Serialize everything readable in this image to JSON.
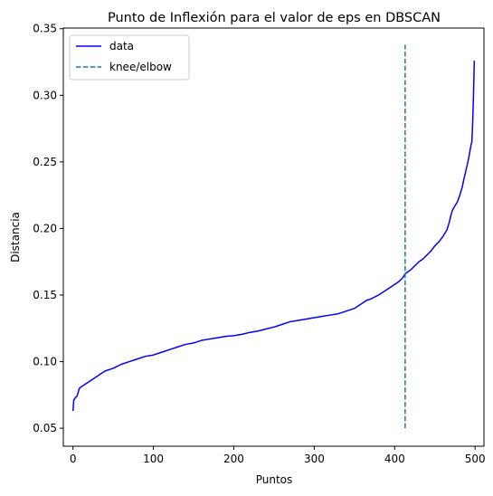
{
  "chart_data": {
    "type": "line",
    "title": "Punto de Inflexión para el valor de eps en DBSCAN",
    "xlabel": "Puntos",
    "ylabel": "Distancia",
    "xlim": [
      -12,
      511
    ],
    "ylim": [
      0.0365,
      0.3505
    ],
    "xticks": [
      0,
      100,
      200,
      300,
      400,
      500
    ],
    "xtick_labels": [
      "0",
      "100",
      "200",
      "300",
      "400",
      "500"
    ],
    "yticks": [
      0.05,
      0.1,
      0.15,
      0.2,
      0.25,
      0.3,
      0.35
    ],
    "ytick_labels": [
      "0.05",
      "0.10",
      "0.15",
      "0.20",
      "0.25",
      "0.30",
      "0.35"
    ],
    "grid": false,
    "legend_position": "top-left",
    "series": [
      {
        "name": "data",
        "style": "solid",
        "color": "#0000ff",
        "points": [
          [
            0,
            0.063
          ],
          [
            1,
            0.071
          ],
          [
            3,
            0.073
          ],
          [
            5,
            0.074
          ],
          [
            7,
            0.078
          ],
          [
            8,
            0.08
          ],
          [
            10,
            0.081
          ],
          [
            15,
            0.083
          ],
          [
            20,
            0.085
          ],
          [
            25,
            0.087
          ],
          [
            30,
            0.089
          ],
          [
            35,
            0.091
          ],
          [
            40,
            0.093
          ],
          [
            50,
            0.095
          ],
          [
            60,
            0.098
          ],
          [
            70,
            0.1
          ],
          [
            80,
            0.102
          ],
          [
            90,
            0.104
          ],
          [
            100,
            0.105
          ],
          [
            110,
            0.107
          ],
          [
            120,
            0.109
          ],
          [
            130,
            0.111
          ],
          [
            140,
            0.113
          ],
          [
            150,
            0.114
          ],
          [
            160,
            0.116
          ],
          [
            170,
            0.117
          ],
          [
            180,
            0.118
          ],
          [
            190,
            0.119
          ],
          [
            200,
            0.1195
          ],
          [
            210,
            0.1205
          ],
          [
            220,
            0.122
          ],
          [
            230,
            0.123
          ],
          [
            240,
            0.1245
          ],
          [
            250,
            0.126
          ],
          [
            260,
            0.128
          ],
          [
            270,
            0.13
          ],
          [
            280,
            0.131
          ],
          [
            290,
            0.132
          ],
          [
            300,
            0.133
          ],
          [
            310,
            0.134
          ],
          [
            320,
            0.135
          ],
          [
            330,
            0.136
          ],
          [
            340,
            0.138
          ],
          [
            350,
            0.14
          ],
          [
            355,
            0.142
          ],
          [
            360,
            0.144
          ],
          [
            365,
            0.146
          ],
          [
            370,
            0.147
          ],
          [
            380,
            0.15
          ],
          [
            390,
            0.154
          ],
          [
            400,
            0.158
          ],
          [
            405,
            0.16
          ],
          [
            410,
            0.163
          ],
          [
            413,
            0.166
          ],
          [
            420,
            0.169
          ],
          [
            425,
            0.172
          ],
          [
            430,
            0.175
          ],
          [
            435,
            0.177
          ],
          [
            440,
            0.18
          ],
          [
            445,
            0.183
          ],
          [
            450,
            0.187
          ],
          [
            455,
            0.19
          ],
          [
            460,
            0.194
          ],
          [
            465,
            0.199
          ],
          [
            468,
            0.205
          ],
          [
            470,
            0.21
          ],
          [
            472,
            0.214
          ],
          [
            475,
            0.217
          ],
          [
            478,
            0.22
          ],
          [
            481,
            0.225
          ],
          [
            484,
            0.231
          ],
          [
            486,
            0.237
          ],
          [
            488,
            0.242
          ],
          [
            491,
            0.25
          ],
          [
            493,
            0.256
          ],
          [
            495,
            0.263
          ],
          [
            496,
            0.265
          ],
          [
            497,
            0.28
          ],
          [
            498,
            0.3
          ],
          [
            499,
            0.326
          ]
        ]
      },
      {
        "name": "knee/elbow",
        "style": "dashed",
        "color": "#1f77b4",
        "points": [
          [
            413,
            0.05
          ],
          [
            413,
            0.338
          ]
        ]
      }
    ]
  }
}
